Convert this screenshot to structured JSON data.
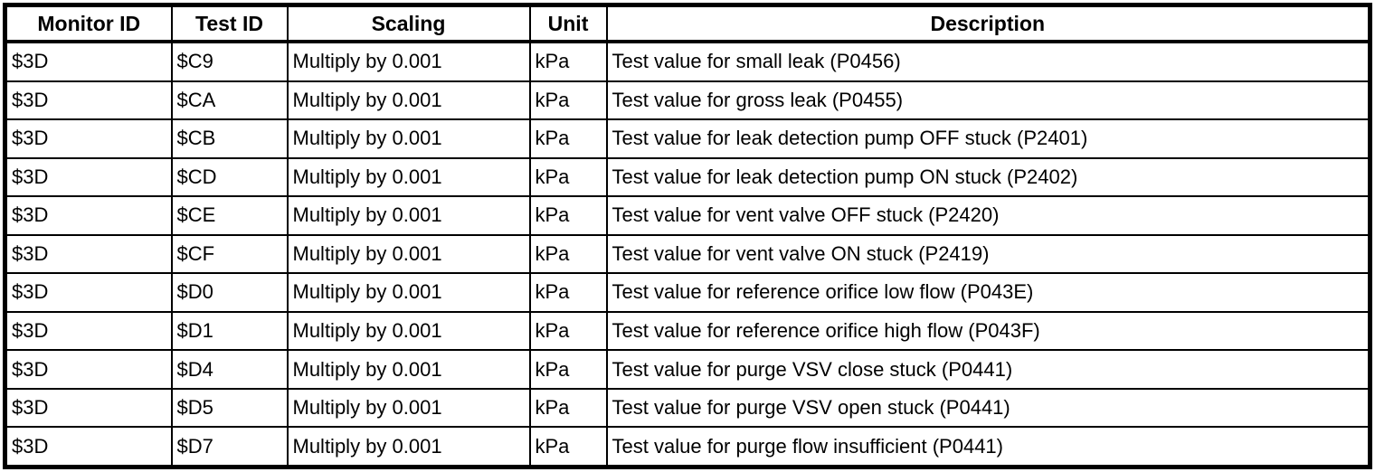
{
  "colors": {
    "text": "#000000",
    "border": "#000000",
    "background": "#ffffff"
  },
  "table": {
    "headers": [
      {
        "key": "monitor_id",
        "label": "Monitor ID"
      },
      {
        "key": "test_id",
        "label": "Test ID"
      },
      {
        "key": "scaling",
        "label": "Scaling"
      },
      {
        "key": "unit",
        "label": "Unit"
      },
      {
        "key": "description",
        "label": "Description"
      }
    ],
    "rows": [
      {
        "monitor_id": "$3D",
        "test_id": "$C9",
        "scaling": "Multiply by 0.001",
        "unit": "kPa",
        "description": "Test value for small leak (P0456)"
      },
      {
        "monitor_id": "$3D",
        "test_id": "$CA",
        "scaling": "Multiply by 0.001",
        "unit": "kPa",
        "description": "Test value for gross leak (P0455)"
      },
      {
        "monitor_id": "$3D",
        "test_id": "$CB",
        "scaling": "Multiply by 0.001",
        "unit": "kPa",
        "description": "Test value for leak detection pump OFF stuck (P2401)"
      },
      {
        "monitor_id": "$3D",
        "test_id": "$CD",
        "scaling": "Multiply by 0.001",
        "unit": "kPa",
        "description": "Test value for leak detection pump ON stuck (P2402)"
      },
      {
        "monitor_id": "$3D",
        "test_id": "$CE",
        "scaling": "Multiply by 0.001",
        "unit": "kPa",
        "description": "Test value for vent valve OFF stuck (P2420)"
      },
      {
        "monitor_id": "$3D",
        "test_id": "$CF",
        "scaling": "Multiply by 0.001",
        "unit": "kPa",
        "description": "Test value for vent valve ON stuck (P2419)"
      },
      {
        "monitor_id": "$3D",
        "test_id": "$D0",
        "scaling": "Multiply by 0.001",
        "unit": "kPa",
        "description": "Test value for reference orifice low flow (P043E)"
      },
      {
        "monitor_id": "$3D",
        "test_id": "$D1",
        "scaling": "Multiply by 0.001",
        "unit": "kPa",
        "description": "Test value for reference orifice high flow (P043F)"
      },
      {
        "monitor_id": "$3D",
        "test_id": "$D4",
        "scaling": "Multiply by 0.001",
        "unit": "kPa",
        "description": "Test value for purge VSV close stuck (P0441)"
      },
      {
        "monitor_id": "$3D",
        "test_id": "$D5",
        "scaling": "Multiply by 0.001",
        "unit": "kPa",
        "description": "Test value for purge VSV open stuck (P0441)"
      },
      {
        "monitor_id": "$3D",
        "test_id": "$D7",
        "scaling": "Multiply by 0.001",
        "unit": "kPa",
        "description": "Test value for purge flow insufficient (P0441)"
      }
    ]
  }
}
